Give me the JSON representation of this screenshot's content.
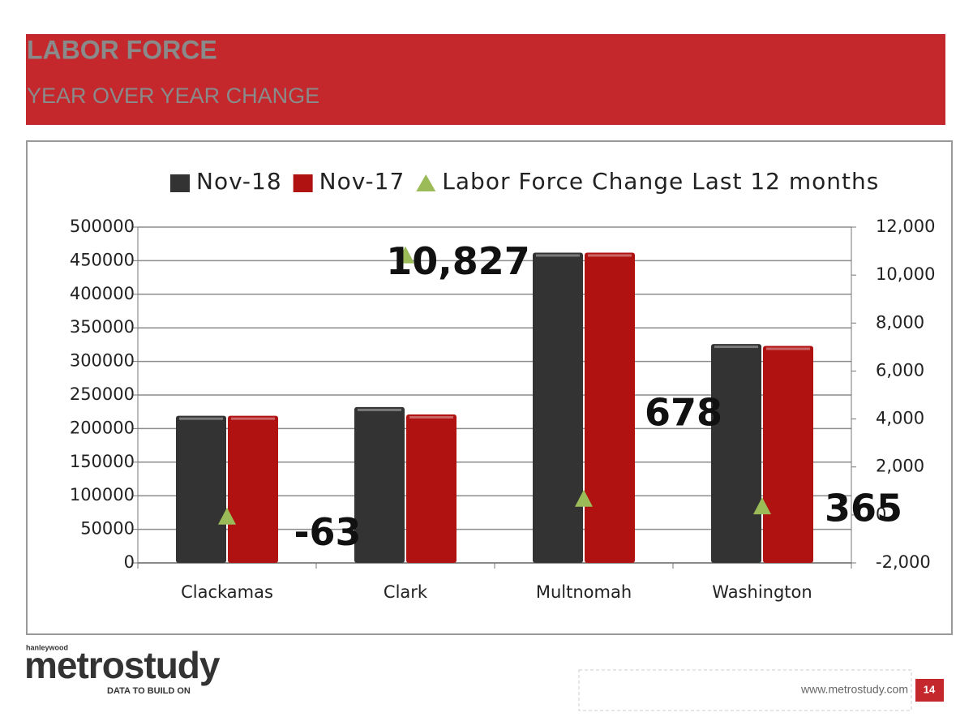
{
  "header": {
    "title": "LABOR FORCE",
    "subtitle": "YEAR OVER YEAR CHANGE"
  },
  "chart_data": {
    "type": "bar",
    "categories": [
      "Clackamas",
      "Clark",
      "Multnomah",
      "Washington"
    ],
    "series": [
      {
        "name": "Nov-18",
        "color": "#333333",
        "values": [
          219000,
          232000,
          462000,
          326000
        ]
      },
      {
        "name": "Nov-17",
        "color": "#b01212",
        "values": [
          219000,
          221000,
          462000,
          323000
        ]
      },
      {
        "name": "Labor Force Change Last 12 months",
        "color": "#9bbb59",
        "axis": "y2",
        "marker": "triangle",
        "values": [
          -63,
          10827,
          678,
          365
        ],
        "value_labels": [
          "-63",
          "10,827",
          "678",
          "365"
        ]
      }
    ],
    "ylim": [
      0,
      500000
    ],
    "yticks": [
      0,
      50000,
      100000,
      150000,
      200000,
      250000,
      300000,
      350000,
      400000,
      450000,
      500000
    ],
    "y2lim": [
      -2000,
      12000
    ],
    "y2ticks": [
      {
        "value": -2000,
        "label": "-2,000"
      },
      0,
      {
        "value": 2000,
        "label": "2,000"
      },
      {
        "value": 4000,
        "label": "4,000"
      },
      {
        "value": 6000,
        "label": "6,000"
      },
      {
        "value": 8000,
        "label": "8,000"
      },
      {
        "value": 10000,
        "label": "10,000"
      },
      {
        "value": 12000,
        "label": "12,000"
      }
    ],
    "grid": true,
    "legend": "top"
  },
  "footer": {
    "brand_top": "hanleywood",
    "brand": "metrostudy",
    "tagline": "DATA TO BUILD ON",
    "url": "www.metrostudy.com",
    "page": "14"
  }
}
